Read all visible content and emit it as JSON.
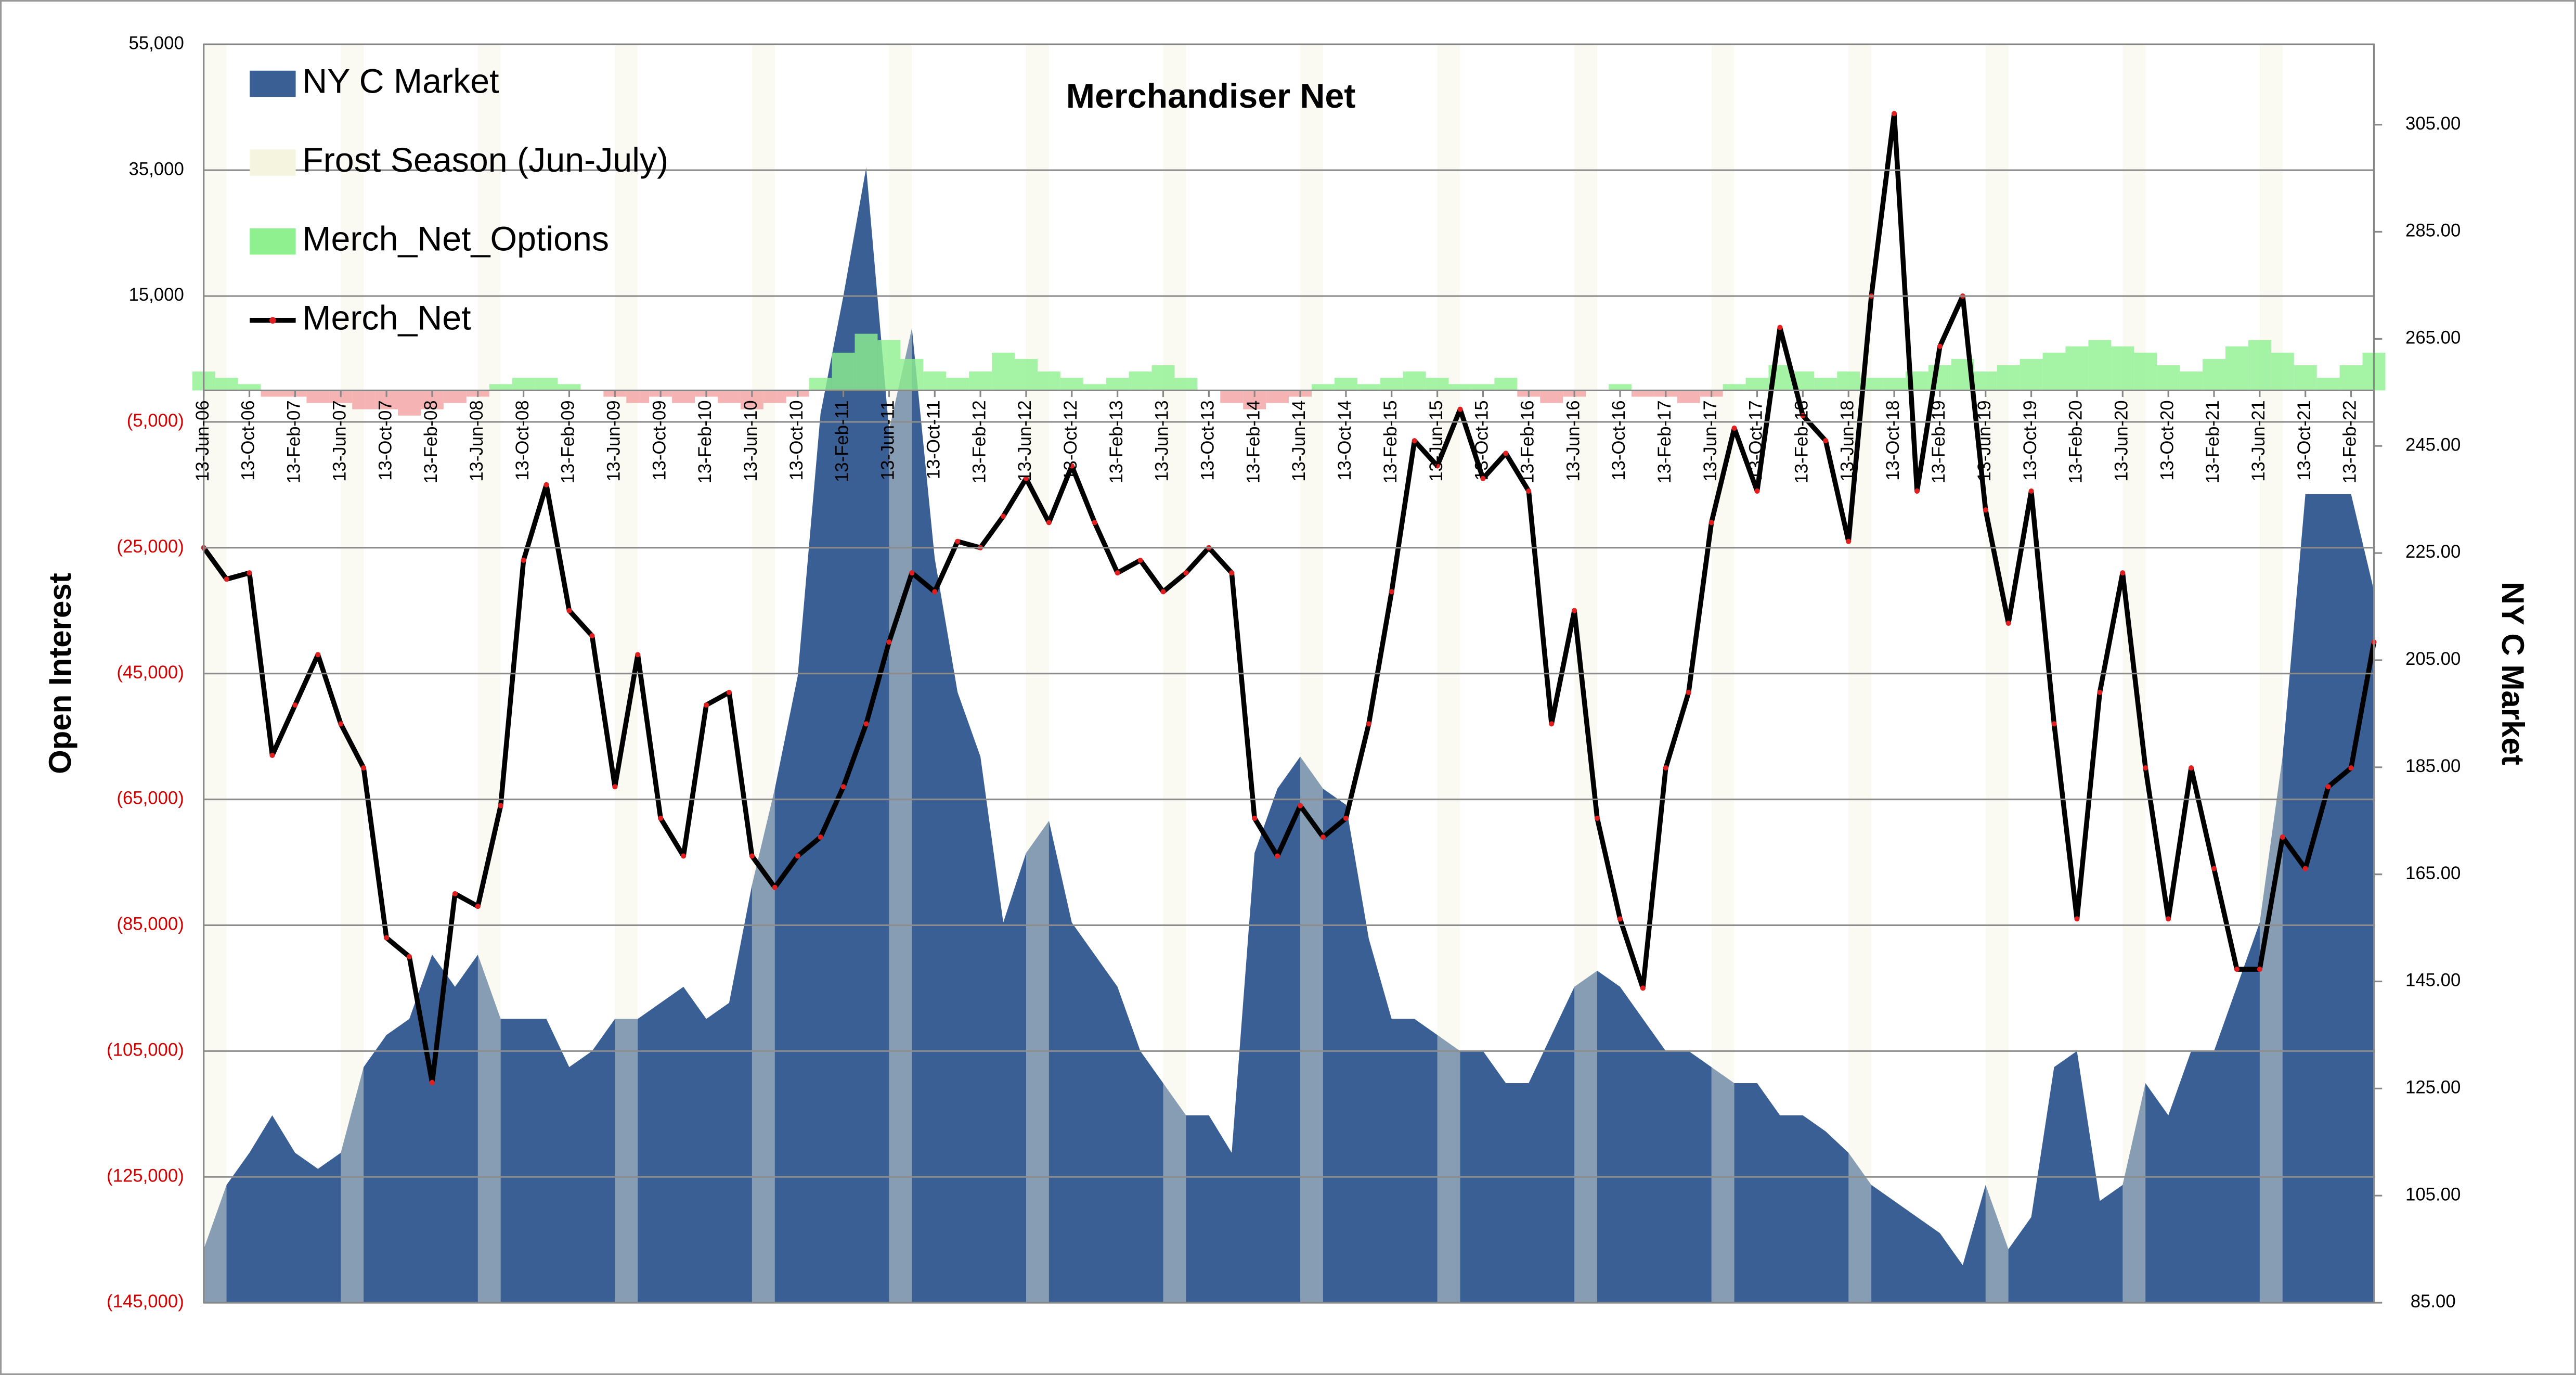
{
  "chart_data": {
    "type": "combo",
    "title": "Merchandiser  Net",
    "ylabel": "Open Interest",
    "y2label": "NY C Market",
    "categories": [
      "13-Jun-06",
      null,
      "13-Oct-06",
      null,
      "13-Feb-07",
      null,
      "13-Jun-07",
      null,
      "13-Oct-07",
      null,
      "13-Feb-08",
      null,
      "13-Jun-08",
      null,
      "13-Oct-08",
      null,
      "13-Feb-09",
      null,
      "13-Jun-09",
      null,
      "13-Oct-09",
      null,
      "13-Feb-10",
      null,
      "13-Jun-10",
      null,
      "13-Oct-10",
      null,
      "13-Feb-11",
      null,
      "13-Jun-11",
      null,
      "13-Oct-11",
      null,
      "13-Feb-12",
      null,
      "13-Jun-12",
      null,
      "13-Oct-12",
      null,
      "13-Feb-13",
      null,
      "13-Jun-13",
      null,
      "13-Oct-13",
      null,
      "13-Feb-14",
      null,
      "13-Jun-14",
      null,
      "13-Oct-14",
      null,
      "13-Feb-15",
      null,
      "13-Jun-15",
      null,
      "13-Oct-15",
      null,
      "13-Feb-16",
      null,
      "13-Jun-16",
      null,
      "13-Oct-16",
      null,
      "13-Feb-17",
      null,
      "13-Jun-17",
      null,
      "13-Oct-17",
      null,
      "13-Feb-18",
      null,
      "13-Jun-18",
      null,
      "13-Oct-18",
      null,
      "13-Feb-19",
      null,
      "13-Jun-19",
      null,
      "13-Oct-19",
      null,
      "13-Feb-20",
      null,
      "13-Jun-20",
      null,
      "13-Oct-20",
      null,
      "13-Feb-21",
      null,
      "13-Jun-21",
      null,
      "13-Oct-21",
      null,
      "13-Feb-22",
      null
    ],
    "series": [
      {
        "name": "NY C Market",
        "type": "area",
        "axis": "y2",
        "color": "#3a5f94",
        "values": [
          95,
          107,
          113,
          120,
          113,
          110,
          113,
          129,
          135,
          138,
          150,
          144,
          150,
          138,
          138,
          138,
          129,
          132,
          138,
          138,
          141,
          144,
          138,
          141,
          163,
          181,
          202,
          251,
          273,
          297,
          248,
          267,
          224,
          199,
          187,
          156,
          169,
          175,
          156,
          150,
          144,
          132,
          126,
          120,
          120,
          113,
          169,
          181,
          187,
          181,
          178,
          153,
          138,
          138,
          135,
          132,
          132,
          126,
          126,
          135,
          144,
          147,
          144,
          138,
          132,
          132,
          129,
          126,
          126,
          120,
          120,
          117,
          113,
          107,
          104,
          101,
          98,
          92,
          107,
          95,
          101,
          129,
          132,
          104,
          107,
          126,
          120,
          132,
          132,
          144,
          156,
          187,
          236,
          236,
          236,
          218
        ]
      },
      {
        "name": "Frost Season (Jun-July)",
        "type": "bar",
        "color": "#f4f4df",
        "values": [
          55000,
          null,
          null,
          null,
          null,
          null,
          55000,
          null,
          null,
          null,
          null,
          null,
          55000,
          null,
          null,
          null,
          null,
          null,
          55000,
          null,
          null,
          null,
          null,
          null,
          55000,
          null,
          null,
          null,
          null,
          null,
          55000,
          null,
          null,
          null,
          null,
          null,
          55000,
          null,
          null,
          null,
          null,
          null,
          55000,
          null,
          null,
          null,
          null,
          null,
          55000,
          null,
          null,
          null,
          null,
          null,
          55000,
          null,
          null,
          null,
          null,
          null,
          55000,
          null,
          null,
          null,
          null,
          null,
          55000,
          null,
          null,
          null,
          null,
          null,
          55000,
          null,
          null,
          null,
          null,
          null,
          55000,
          null,
          null,
          null,
          null,
          null,
          55000,
          null,
          null,
          null,
          null,
          null,
          55000,
          null,
          null,
          null,
          null,
          null
        ]
      },
      {
        "name": "Merch_Net_Options",
        "type": "column",
        "color": "#8ef08e",
        "negative_color": "#f2a0a0",
        "values": [
          3000,
          2000,
          1000,
          -1000,
          -1000,
          -2000,
          -2000,
          -3000,
          -3000,
          -4000,
          -3000,
          -2000,
          -1000,
          1000,
          2000,
          2000,
          1000,
          0,
          -1000,
          -2000,
          -1000,
          -2000,
          -1000,
          -2000,
          -3000,
          -2000,
          -1000,
          2000,
          6000,
          9000,
          8000,
          5000,
          3000,
          2000,
          3000,
          6000,
          5000,
          3000,
          2000,
          1000,
          2000,
          3000,
          4000,
          2000,
          0,
          -2000,
          -3000,
          -2000,
          -1000,
          1000,
          2000,
          1000,
          2000,
          3000,
          2000,
          1000,
          1000,
          2000,
          -1000,
          -2000,
          -1000,
          0,
          1000,
          -1000,
          -1000,
          -2000,
          -1000,
          1000,
          2000,
          4000,
          3000,
          2000,
          3000,
          2000,
          2000,
          3000,
          4000,
          5000,
          3000,
          4000,
          5000,
          6000,
          7000,
          8000,
          7000,
          6000,
          4000,
          3000,
          5000,
          7000,
          8000,
          6000,
          4000,
          2000,
          4000,
          6000
        ]
      },
      {
        "name": "Merch_Net",
        "type": "line",
        "color": "#000000",
        "marker_color": "#e02020",
        "values": [
          -25000,
          -30000,
          -29000,
          -58000,
          -50000,
          -42000,
          -53000,
          -60000,
          -87000,
          -90000,
          -110000,
          -80000,
          -82000,
          -66000,
          -27000,
          -15000,
          -35000,
          -39000,
          -63000,
          -42000,
          -68000,
          -74000,
          -50000,
          -48000,
          -74000,
          -79000,
          -74000,
          -71000,
          -63000,
          -53000,
          -40000,
          -29000,
          -32000,
          -24000,
          -25000,
          -20000,
          -14000,
          -21000,
          -12000,
          -21000,
          -29000,
          -27000,
          -32000,
          -29000,
          -25000,
          -29000,
          -68000,
          -74000,
          -66000,
          -71000,
          -68000,
          -53000,
          -32000,
          -8000,
          -12000,
          -3000,
          -14000,
          -10000,
          -16000,
          -53000,
          -35000,
          -68000,
          -84000,
          -95000,
          -60000,
          -48000,
          -21000,
          -6000,
          -16000,
          10000,
          -4000,
          -8000,
          -24000,
          15000,
          44000,
          -16000,
          7000,
          15000,
          -19000,
          -37000,
          -16000,
          -53000,
          -84000,
          -48000,
          -29000,
          -60000,
          -84000,
          -60000,
          -76000,
          -92000,
          -92000,
          -71000,
          -76000,
          -63000,
          -60000,
          -40000
        ]
      }
    ],
    "ylim": [
      -145000,
      55000
    ],
    "yticks": [
      {
        "value": -145000,
        "label": "(145,000)"
      },
      {
        "value": -125000,
        "label": "(125,000)"
      },
      {
        "value": -105000,
        "label": "(105,000)"
      },
      {
        "value": -85000,
        "label": "(85,000)"
      },
      {
        "value": -65000,
        "label": "(65,000)"
      },
      {
        "value": -45000,
        "label": "(45,000)"
      },
      {
        "value": -25000,
        "label": "(25,000)"
      },
      {
        "value": -5000,
        "label": "(5,000)"
      },
      {
        "value": 15000,
        "label": "15,000"
      },
      {
        "value": 35000,
        "label": "35,000"
      },
      {
        "value": 55000,
        "label": "55,000"
      }
    ],
    "y2lim": [
      85,
      320
    ],
    "y2ticks": [
      {
        "value": 85,
        "label": "85.00"
      },
      {
        "value": 105,
        "label": "105.00"
      },
      {
        "value": 125,
        "label": "125.00"
      },
      {
        "value": 145,
        "label": "145.00"
      },
      {
        "value": 165,
        "label": "165.00"
      },
      {
        "value": 185,
        "label": "185.00"
      },
      {
        "value": 205,
        "label": "205.00"
      },
      {
        "value": 225,
        "label": "225.00"
      },
      {
        "value": 245,
        "label": "245.00"
      },
      {
        "value": 265,
        "label": "265.00"
      },
      {
        "value": 285,
        "label": "285.00"
      },
      {
        "value": 305,
        "label": "305.00"
      }
    ],
    "grid": true,
    "tick_color": "#000000",
    "negative_tick_color": "#d00000",
    "legend": "upper left"
  }
}
